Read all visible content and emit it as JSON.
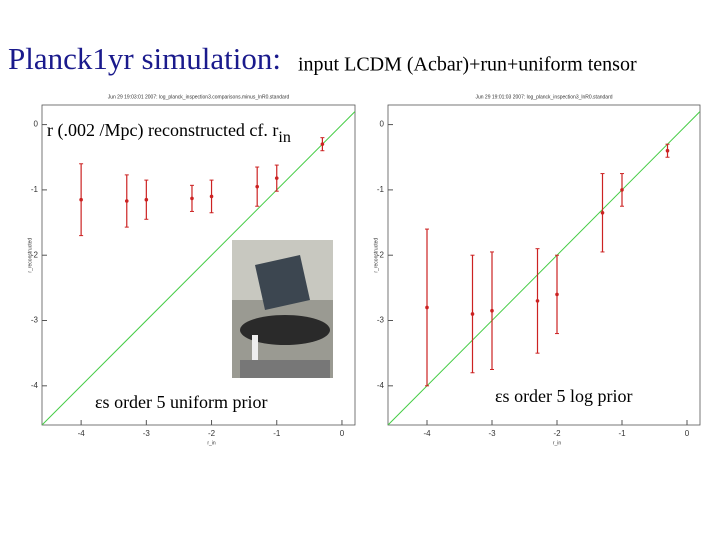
{
  "slide": {
    "title": "Planck1yr simulation:",
    "subtitle": "input LCDM (Acbar)+run+uniform tensor",
    "overlay": "r (.002 /Mpc) reconstructed cf. r",
    "overlay_subscript": "in"
  },
  "chart_data": [
    {
      "type": "scatter",
      "header": "Jun 29 19:03:01 2007: log_planck_inspection3.comparisons.minus_lnR0.standard",
      "xlabel": "r_in",
      "ylabel": "r_reconstructed",
      "annotation": "εs order 5 uniform prior",
      "x": [
        -4,
        -3.3,
        -3,
        -2.3,
        -2,
        -1.3,
        -1,
        -0.3
      ],
      "series": [
        {
          "name": "r_reconstructed",
          "color": "#cc2222",
          "values": [
            -1.15,
            -1.17,
            -1.15,
            -1.13,
            -1.1,
            -0.95,
            -0.82,
            -0.3
          ],
          "errors": [
            0.55,
            0.4,
            0.3,
            0.2,
            0.25,
            0.3,
            0.2,
            0.1
          ]
        }
      ],
      "xlim": [
        -4.6,
        0.2
      ],
      "ylim": [
        -4.6,
        0.3
      ],
      "xticks": [
        -4,
        -3,
        -2,
        -1,
        0
      ],
      "yticks": [
        0,
        -1,
        -2,
        -3,
        -4
      ]
    },
    {
      "type": "scatter",
      "header": "Jun 29 19:01:03 2007: log_planck_inspection3_lnR0.standard",
      "xlabel": "r_in",
      "ylabel": "r_reconstructed",
      "annotation": "εs order 5 log prior",
      "x": [
        -4,
        -3.3,
        -3,
        -2.3,
        -2,
        -1.3,
        -1,
        -0.3
      ],
      "series": [
        {
          "name": "r_reconstructed",
          "color": "#cc2222",
          "values": [
            -2.8,
            -2.9,
            -2.85,
            -2.7,
            -2.6,
            -1.35,
            -1.0,
            -0.4
          ],
          "errors": [
            1.2,
            0.9,
            0.9,
            0.8,
            0.6,
            0.6,
            0.25,
            0.1
          ]
        }
      ],
      "xlim": [
        -4.6,
        0.2
      ],
      "ylim": [
        -4.6,
        0.3
      ],
      "xticks": [
        -4,
        -3,
        -2,
        -1,
        0
      ],
      "yticks": [
        0,
        -1,
        -2,
        -3,
        -4
      ]
    }
  ]
}
